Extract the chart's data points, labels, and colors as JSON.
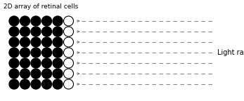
{
  "title": "2D array of retinal cells",
  "title_fontsize": 6.5,
  "black_grid_cols": 5,
  "black_grid_rows": 7,
  "black_cell_color": "#000000",
  "white_cell_color": "#ffffff",
  "white_cell_edge": "#000000",
  "arrow_color": "#666666",
  "dashed_line_color": "#888888",
  "light_rays_label": "Light rays",
  "light_rays_fontsize": 7,
  "background_color": "#ffffff",
  "fig_width": 3.47,
  "fig_height": 1.44,
  "dpi": 100
}
